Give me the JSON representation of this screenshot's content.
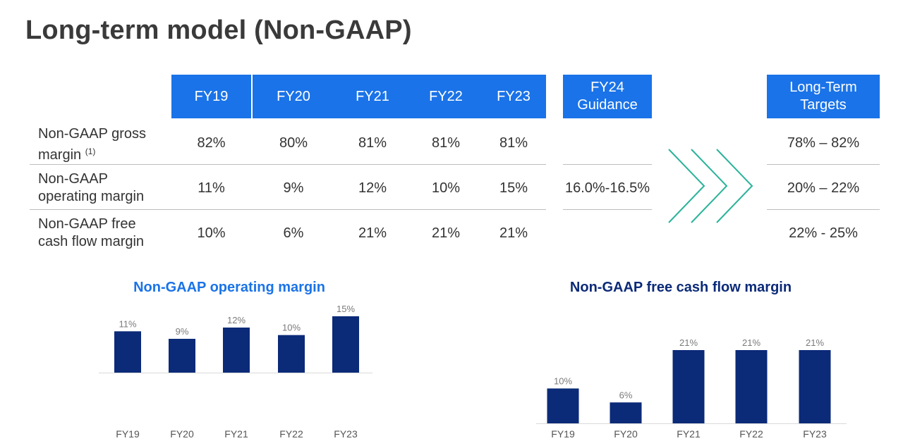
{
  "title": "Long-term model (Non-GAAP)",
  "table": {
    "years": [
      "FY19",
      "FY20",
      "FY21",
      "FY22",
      "FY23"
    ],
    "guidance_header": [
      "FY24",
      "Guidance"
    ],
    "targets_header": [
      "Long-Term",
      "Targets"
    ],
    "rows": [
      {
        "label_lines": [
          "Non-GAAP gross",
          "margin"
        ],
        "footnote": "(1)",
        "values": [
          "82%",
          "80%",
          "81%",
          "81%",
          "81%"
        ],
        "guidance": "",
        "target": "78% – 82%"
      },
      {
        "label_lines": [
          "Non-GAAP",
          "operating margin"
        ],
        "footnote": "",
        "values": [
          "11%",
          "9%",
          "12%",
          "10%",
          "15%"
        ],
        "guidance": "16.0%-16.5%",
        "target": "20% – 22%"
      },
      {
        "label_lines": [
          "Non-GAAP free",
          "cash flow margin"
        ],
        "footnote": "",
        "values": [
          "10%",
          "6%",
          "21%",
          "21%",
          "21%"
        ],
        "guidance": "",
        "target": "22% - 25%"
      }
    ]
  },
  "colors": {
    "header_blue": "#1a73e8",
    "bar_navy": "#0b2a78",
    "chevron_green": "#2bb39a",
    "title1_color": "#1a73e8",
    "title2_color": "#0b2a78"
  },
  "chart_data": [
    {
      "type": "bar",
      "title": "Non-GAAP operating margin",
      "categories": [
        "FY19",
        "FY20",
        "FY21",
        "FY22",
        "FY23"
      ],
      "values": [
        11,
        9,
        12,
        10,
        15
      ],
      "labels": [
        "11%",
        "9%",
        "12%",
        "10%",
        "15%"
      ],
      "xlabel": "",
      "ylabel": "",
      "ylim": [
        0,
        15
      ]
    },
    {
      "type": "bar",
      "title": "Non-GAAP free cash flow margin",
      "categories": [
        "FY19",
        "FY20",
        "FY21",
        "FY22",
        "FY23"
      ],
      "values": [
        10,
        6,
        21,
        21,
        21
      ],
      "labels": [
        "10%",
        "6%",
        "21%",
        "21%",
        "21%"
      ],
      "xlabel": "",
      "ylabel": "",
      "ylim": [
        0,
        21
      ]
    }
  ]
}
